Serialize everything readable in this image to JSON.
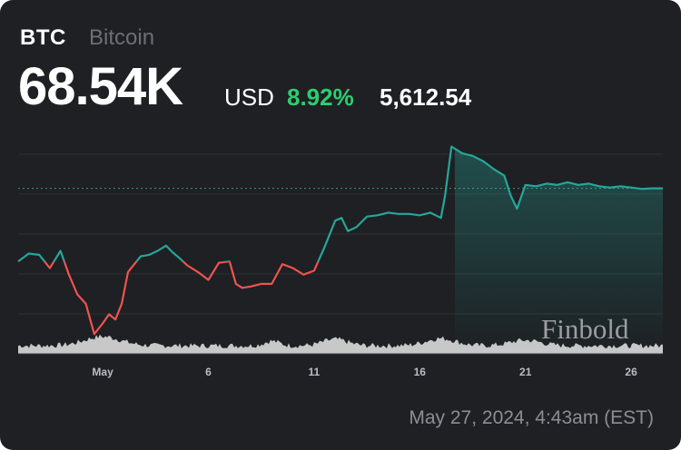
{
  "header": {
    "ticker": "BTC",
    "name": "Bitcoin",
    "price": "68.54K",
    "currency": "USD",
    "change_pct": "8.92%",
    "change_abs": "5,612.54"
  },
  "footer": {
    "timestamp": "May 27, 2024, 4:43am (EST)"
  },
  "watermark": "Finbold",
  "colors": {
    "background": "#1e2023",
    "up": "#26a69a",
    "down": "#ef5350",
    "positive_text": "#2ecc71",
    "volume": "#e6e6e6"
  },
  "chart_data": {
    "type": "line",
    "x_unit": "days (Apr 27 – May 27, 2024)",
    "xlim": [
      0,
      30.5
    ],
    "ylim": [
      56000,
      72500
    ],
    "grid": true,
    "reference_value": 68540,
    "series": [
      {
        "x": [
          0,
          0.5,
          1,
          1.5,
          2,
          2.4,
          2.8,
          3.2,
          3.6,
          4,
          4.3,
          4.6,
          4.9,
          5.2,
          5.5,
          5.8,
          6.2,
          6.6,
          7,
          7.3,
          7.6,
          8,
          8.5,
          9,
          9.5,
          10,
          10.3,
          10.6,
          11,
          11.5,
          12,
          12.5,
          13,
          13.5,
          14,
          14.5,
          15,
          15.3,
          15.6,
          16,
          16.5,
          17,
          17.5,
          18,
          18.5,
          19,
          19.5,
          20,
          20.2,
          20.5,
          21,
          21.5,
          22,
          22.5,
          23,
          23.3,
          23.6,
          24,
          24.5,
          25,
          25.5,
          26,
          26.5,
          27,
          27.5,
          28,
          28.5,
          29,
          29.5,
          30,
          30.5
        ],
        "y": [
          63000,
          63600,
          63500,
          62500,
          63800,
          62000,
          60500,
          59800,
          57500,
          58300,
          59000,
          58600,
          59800,
          62200,
          62800,
          63400,
          63500,
          63800,
          64200,
          63700,
          63300,
          62700,
          62200,
          61600,
          62900,
          63000,
          61300,
          61000,
          61100,
          61300,
          61300,
          62800,
          62500,
          62000,
          62300,
          64100,
          66100,
          66300,
          65300,
          65600,
          66400,
          66500,
          66700,
          66600,
          66600,
          66500,
          66700,
          66300,
          68000,
          71700,
          71200,
          71000,
          70600,
          70000,
          69500,
          68000,
          67000,
          68800,
          68700,
          68900,
          68800,
          69000,
          68800,
          68900,
          68700,
          68600,
          68700,
          68600,
          68500,
          68540,
          68540
        ]
      }
    ]
  },
  "x_ticks": [
    {
      "label": "May",
      "x": 4
    },
    {
      "label": "6",
      "x": 9
    },
    {
      "label": "11",
      "x": 14
    },
    {
      "label": "16",
      "x": 19
    },
    {
      "label": "21",
      "x": 24
    },
    {
      "label": "26",
      "x": 29
    }
  ]
}
